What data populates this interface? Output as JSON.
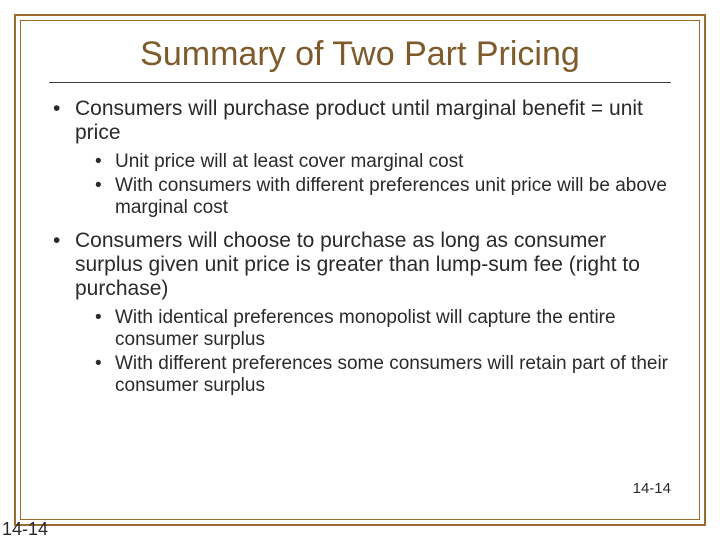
{
  "colors": {
    "frame_border": "#9e6b2e",
    "title_color": "#7f5a2a",
    "text_color": "#2a2a2a",
    "underline_color": "#404040",
    "background": "#ffffff"
  },
  "typography": {
    "title_fontsize": 34,
    "level1_fontsize": 21,
    "level2_fontsize": 19,
    "slidenum_fontsize": 15,
    "font_family": "Arial"
  },
  "title": "Summary of Two Part Pricing",
  "bullets": [
    {
      "text": "Consumers will purchase product until marginal benefit = unit price",
      "sub": [
        "Unit price will at least cover marginal cost",
        "With consumers with different preferences unit price will be above marginal cost"
      ]
    },
    {
      "text": "Consumers will choose to purchase as long as consumer surplus given unit price is greater than lump-sum fee (right to purchase)",
      "sub": [
        "With identical preferences monopolist will capture the entire consumer surplus",
        "With different preferences some consumers will retain part of their consumer surplus"
      ]
    }
  ],
  "slide_number_inner": "14-14",
  "slide_number_outer": "14-14"
}
